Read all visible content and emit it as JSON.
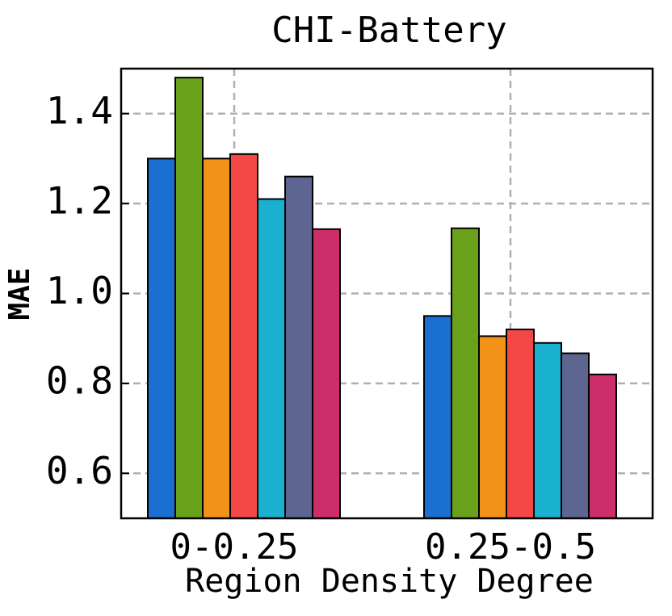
{
  "chart_data": {
    "type": "bar",
    "title": "CHI-Battery",
    "x_label": "Region Density Degree",
    "y_label": "MAE",
    "categories": [
      "0-0.25",
      "0.25-0.5"
    ],
    "series": [
      {
        "color": "#1a6fd0",
        "values": [
          1.3,
          0.95
        ]
      },
      {
        "color": "#6aa11a",
        "values": [
          1.48,
          1.145
        ]
      },
      {
        "color": "#f39218",
        "values": [
          1.3,
          0.905
        ]
      },
      {
        "color": "#f44848",
        "values": [
          1.31,
          0.92
        ]
      },
      {
        "color": "#1ab0d0",
        "values": [
          1.21,
          0.89
        ]
      },
      {
        "color": "#5e6591",
        "values": [
          1.26,
          0.867
        ]
      },
      {
        "color": "#cc2e6b",
        "values": [
          1.143,
          0.82
        ]
      }
    ],
    "ylim": [
      0.5,
      1.5
    ],
    "yticks": [
      {
        "value": 0.6,
        "label": "0.6"
      },
      {
        "value": 0.8,
        "label": "0.8"
      },
      {
        "value": 1.0,
        "label": "1.0"
      },
      {
        "value": 1.2,
        "label": "1.2"
      },
      {
        "value": 1.4,
        "label": "1.4"
      }
    ],
    "grid": true
  }
}
